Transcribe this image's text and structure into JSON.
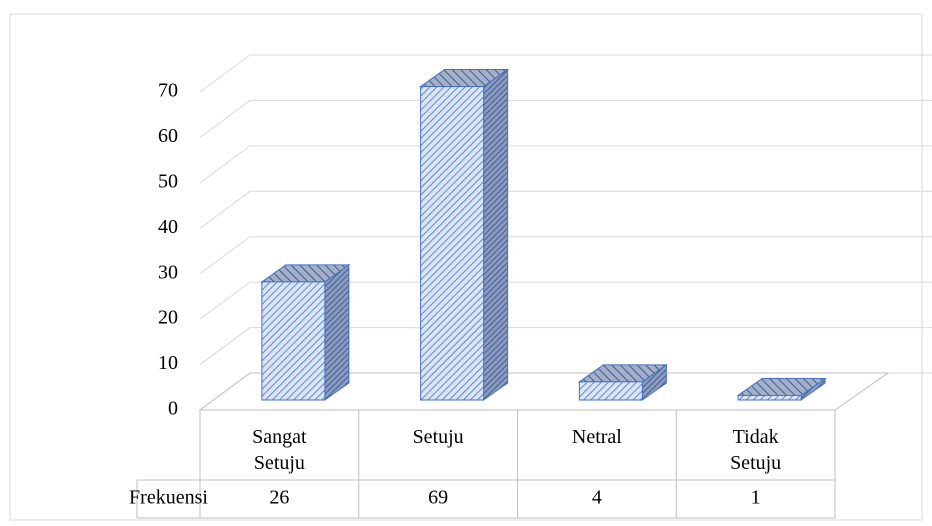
{
  "chart_data": {
    "type": "bar",
    "categories": [
      "Sangat Setuju",
      "Setuju",
      "Netral",
      "Tidak Setuju"
    ],
    "series": [
      {
        "name": "Frekuensi",
        "color": "#4472c4",
        "values": [
          26,
          69,
          4,
          1
        ]
      }
    ],
    "ylim": [
      0,
      70
    ],
    "yticks": [
      0,
      10,
      20,
      30,
      40,
      50,
      60,
      70
    ],
    "grid": true
  }
}
